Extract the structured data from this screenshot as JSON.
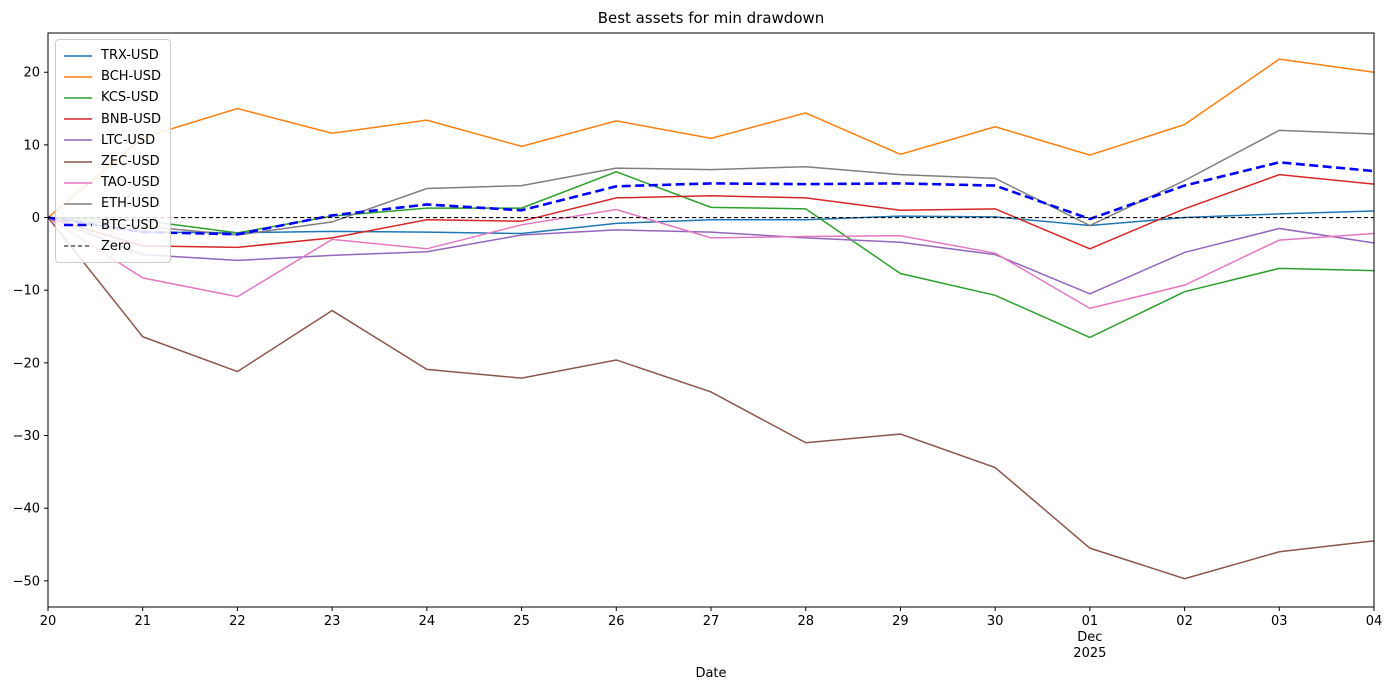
{
  "chart_data": {
    "type": "line",
    "title": "Best assets for min drawdown",
    "xlabel": "Date",
    "ylabel": "",
    "grid": false,
    "legend_position": "upper-left",
    "ylim": [
      -53.6,
      25.4
    ],
    "yticks": [
      20,
      10,
      0,
      -10,
      -20,
      -30,
      -40,
      -50
    ],
    "categories": [
      "20",
      "21",
      "22",
      "23",
      "24",
      "25",
      "26",
      "27",
      "28",
      "29",
      "30",
      "01",
      "02",
      "03",
      "04"
    ],
    "x_sublabel": {
      "index": 11,
      "lines": [
        "Dec",
        "2025"
      ]
    },
    "series": [
      {
        "name": "TRX-USD",
        "color": "#1f77b4",
        "style": "solid",
        "width": 1.5,
        "values": [
          0,
          -2.0,
          -2.1,
          -1.9,
          -2.0,
          -2.2,
          -0.8,
          -0.3,
          -0.3,
          0.2,
          0.1,
          -1.1,
          0.0,
          0.5,
          0.9
        ]
      },
      {
        "name": "BCH-USD",
        "color": "#ff7f0e",
        "style": "solid",
        "width": 1.5,
        "values": [
          0,
          11.0,
          15.0,
          11.6,
          13.4,
          9.8,
          13.3,
          10.9,
          14.4,
          8.7,
          12.5,
          8.6,
          12.8,
          21.8,
          20.0
        ]
      },
      {
        "name": "KCS-USD",
        "color": "#2ca02c",
        "style": "solid",
        "width": 1.5,
        "values": [
          0,
          -0.4,
          -2.1,
          0.2,
          1.3,
          1.3,
          6.3,
          1.4,
          1.2,
          -7.7,
          -10.7,
          -16.5,
          -10.2,
          -7.0,
          -7.3
        ]
      },
      {
        "name": "BNB-USD",
        "color": "#d62728",
        "style": "solid",
        "width": 1.5,
        "values": [
          0,
          -3.9,
          -4.1,
          -2.8,
          -0.3,
          -0.5,
          2.7,
          3.0,
          2.7,
          1.0,
          1.2,
          -4.3,
          1.2,
          5.9,
          4.6
        ]
      },
      {
        "name": "LTC-USD",
        "color": "#9467bd",
        "style": "solid",
        "width": 1.5,
        "values": [
          0,
          -5.1,
          -5.9,
          -5.2,
          -4.7,
          -2.4,
          -1.7,
          -2.0,
          -2.8,
          -3.4,
          -5.1,
          -10.5,
          -4.8,
          -1.5,
          -3.5
        ]
      },
      {
        "name": "ZEC-USD",
        "color": "#8c564b",
        "style": "solid",
        "width": 1.5,
        "values": [
          0,
          -16.4,
          -21.2,
          -12.8,
          -20.9,
          -22.1,
          -19.6,
          -24.0,
          -31.0,
          -29.8,
          -34.4,
          -45.5,
          -49.7,
          -46.0,
          -44.5
        ]
      },
      {
        "name": "TAO-USD",
        "color": "#e377c2",
        "style": "solid",
        "width": 1.5,
        "values": [
          0,
          -8.3,
          -10.9,
          -3.0,
          -4.3,
          -1.0,
          1.1,
          -2.8,
          -2.6,
          -2.5,
          -4.9,
          -12.5,
          -9.3,
          -3.1,
          -2.2
        ]
      },
      {
        "name": "ETH-USD",
        "color": "#7f7f7f",
        "style": "solid",
        "width": 1.5,
        "values": [
          0,
          -1.2,
          -2.4,
          -0.6,
          4.0,
          4.4,
          6.8,
          6.6,
          7.0,
          5.9,
          5.4,
          -1.1,
          5.1,
          12.0,
          11.5
        ]
      },
      {
        "name": "BTC-USD",
        "color": "#0000ff",
        "style": "dashed-bold",
        "width": 2.6,
        "values": [
          0,
          -2.0,
          -2.3,
          0.3,
          1.8,
          1.0,
          4.3,
          4.7,
          4.6,
          4.7,
          4.4,
          -0.2,
          4.4,
          7.6,
          6.4
        ]
      },
      {
        "name": "Zero",
        "color": "#000000",
        "style": "dashed",
        "width": 1.1,
        "values": [
          0,
          0,
          0,
          0,
          0,
          0,
          0,
          0,
          0,
          0,
          0,
          0,
          0,
          0,
          0
        ]
      }
    ]
  }
}
